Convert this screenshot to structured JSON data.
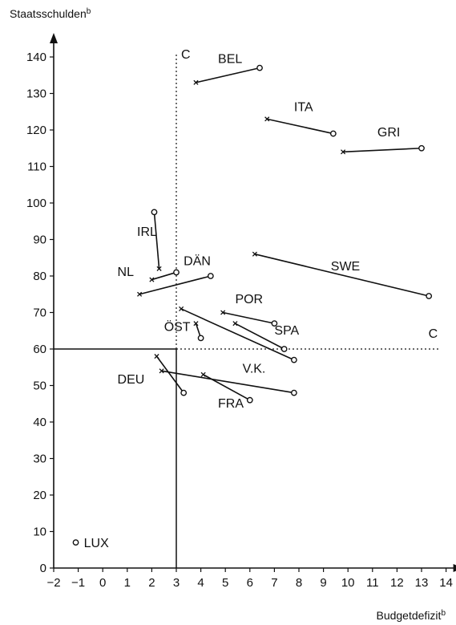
{
  "chart_data": {
    "type": "scatter",
    "xlabel": "Budgetdefizit",
    "xlabel_sup": "b",
    "ylabel": "Staatsschulden",
    "ylabel_sup": "b",
    "xlim": [
      -2,
      14
    ],
    "ylim": [
      0,
      140
    ],
    "x_ticks": [
      -2,
      -1,
      0,
      1,
      2,
      3,
      4,
      5,
      6,
      7,
      8,
      9,
      10,
      11,
      12,
      13,
      14
    ],
    "y_ticks": [
      0,
      10,
      20,
      30,
      40,
      50,
      60,
      70,
      80,
      90,
      100,
      110,
      120,
      130,
      140
    ],
    "grid": false,
    "markers": {
      "start": "cross",
      "end": "circle"
    },
    "reference_lines": [
      {
        "orientation": "vertical",
        "value": 3,
        "style": "solid-below-dotted-above",
        "label": "C"
      },
      {
        "orientation": "horizontal",
        "value": 60,
        "style": "solid-left-dotted-right",
        "label": "C"
      }
    ],
    "series": [
      {
        "name": "BEL",
        "x": [
          3.8,
          6.4
        ],
        "y": [
          133,
          137
        ]
      },
      {
        "name": "ITA",
        "x": [
          6.7,
          9.4
        ],
        "y": [
          123,
          119
        ]
      },
      {
        "name": "GRI",
        "x": [
          9.8,
          13.0
        ],
        "y": [
          114,
          115
        ]
      },
      {
        "name": "IRL",
        "x": [
          2.3,
          2.1
        ],
        "y": [
          82,
          97.5
        ]
      },
      {
        "name": "NL",
        "x": [
          2.0,
          3.0
        ],
        "y": [
          79,
          81
        ]
      },
      {
        "name": "DÄN",
        "x": [
          1.5,
          4.4
        ],
        "y": [
          75,
          80
        ]
      },
      {
        "name": "SWE",
        "x": [
          6.2,
          13.3
        ],
        "y": [
          86,
          74.5
        ]
      },
      {
        "name": "POR",
        "x": [
          4.9,
          7.0
        ],
        "y": [
          70,
          67
        ]
      },
      {
        "name": "ÖST",
        "x": [
          3.8,
          4.0
        ],
        "y": [
          67,
          63
        ]
      },
      {
        "name": "SPA",
        "x": [
          5.4,
          7.4
        ],
        "y": [
          67,
          60
        ]
      },
      {
        "name": "",
        "x": [
          3.2,
          7.8
        ],
        "y": [
          71,
          57
        ]
      },
      {
        "name": "DEU",
        "x": [
          2.2,
          3.3
        ],
        "y": [
          58,
          48
        ]
      },
      {
        "name": "V.K.",
        "x": [
          2.4,
          7.8
        ],
        "y": [
          54,
          48
        ]
      },
      {
        "name": "FRA",
        "x": [
          4.1,
          6.0
        ],
        "y": [
          53,
          46
        ]
      },
      {
        "name": "LUX",
        "x": [
          -1.1
        ],
        "y": [
          7
        ]
      }
    ]
  }
}
